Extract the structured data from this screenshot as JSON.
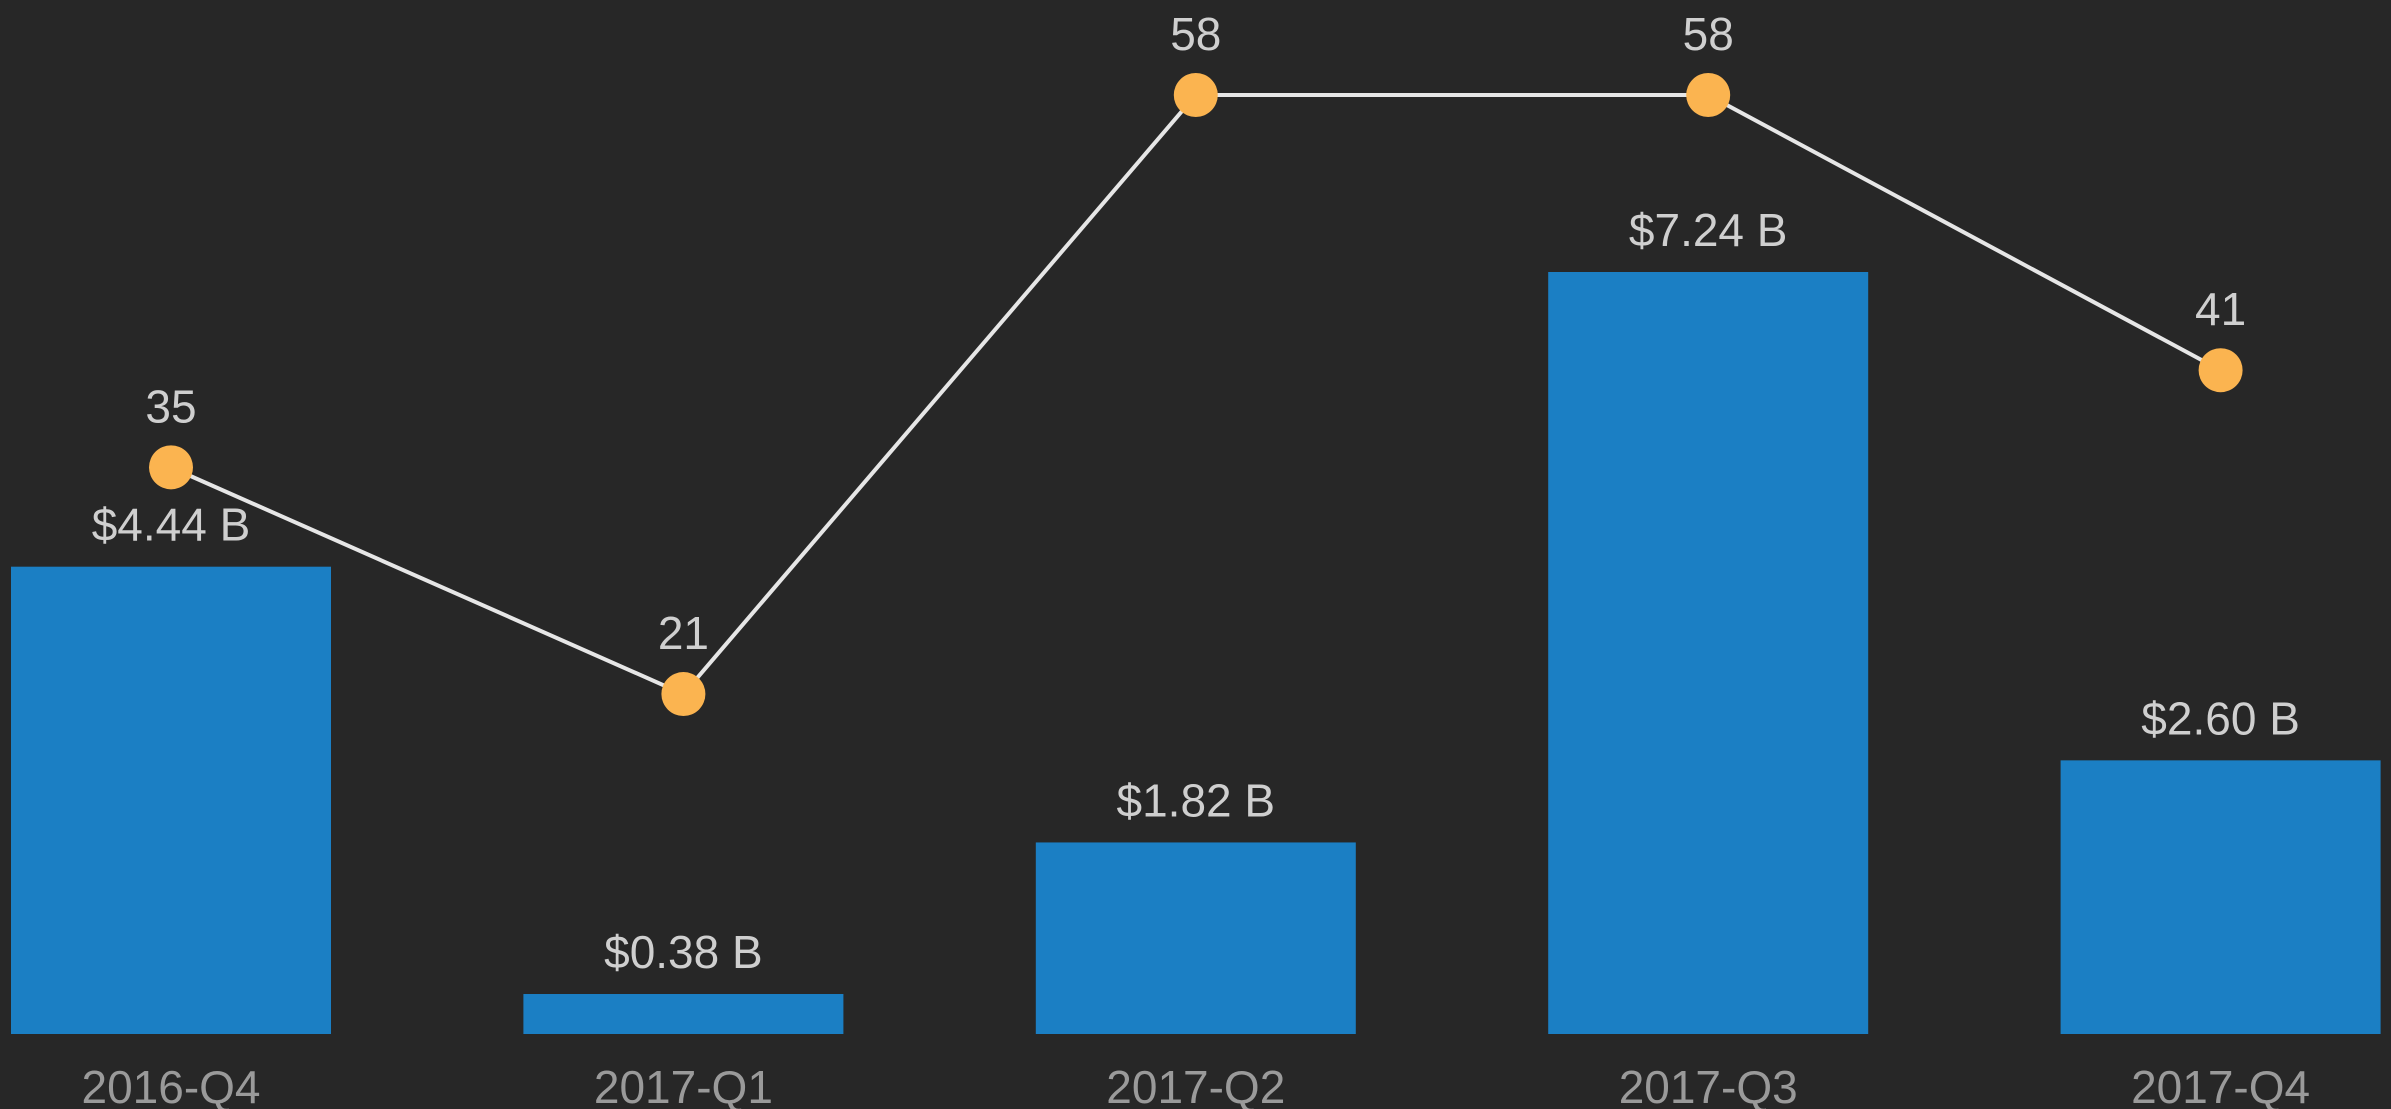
{
  "chart_data": {
    "type": "bar",
    "categories": [
      "2016-Q4",
      "2017-Q1",
      "2017-Q2",
      "2017-Q3",
      "2017-Q4"
    ],
    "series": [
      {
        "type": "bar",
        "color": "#1b7fc4",
        "values": [
          4.44,
          0.38,
          1.82,
          7.24,
          2.6
        ],
        "value_labels": [
          "$4.44 B",
          "$0.38 B",
          "$1.82 B",
          "$7.24 B",
          "$2.60 B"
        ]
      },
      {
        "type": "line",
        "color": "#fbb450",
        "line_color": "#e6e6e6",
        "values": [
          35,
          21,
          58,
          58,
          41
        ]
      }
    ]
  }
}
